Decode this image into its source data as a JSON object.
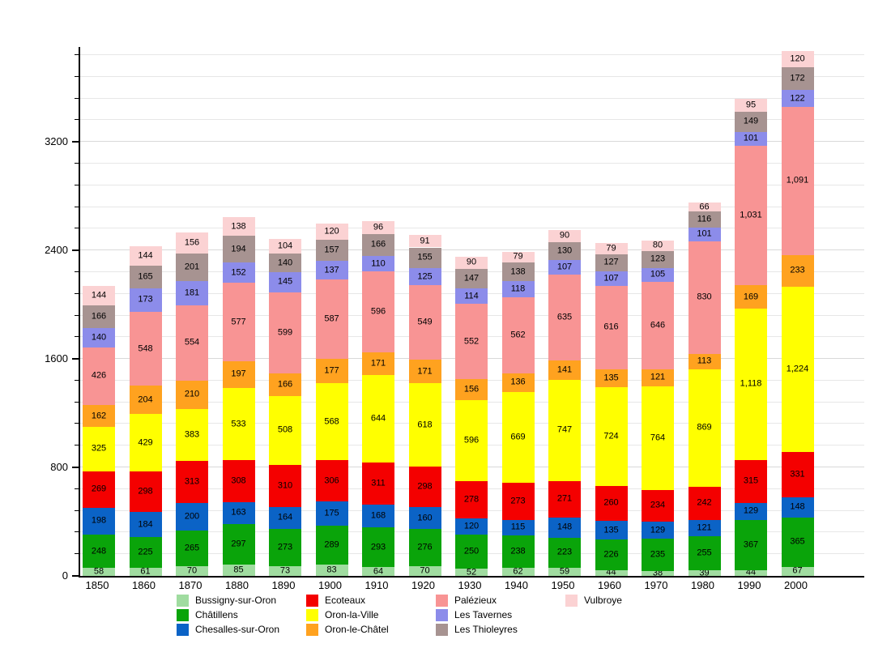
{
  "chart_data": {
    "type": "bar",
    "stacked": true,
    "title": "",
    "xlabel": "",
    "ylabel": "",
    "grid": true,
    "legend_position": "bottom",
    "value_labels": true,
    "ylim": [
      0,
      3900
    ],
    "yticks": [
      0,
      800,
      1600,
      2400,
      3200
    ],
    "minor_tick_step": 160,
    "categories": [
      "1850",
      "1860",
      "1870",
      "1880",
      "1890",
      "1900",
      "1910",
      "1920",
      "1930",
      "1940",
      "1950",
      "1960",
      "1970",
      "1980",
      "1990",
      "2000"
    ],
    "series": [
      {
        "name": "Bussigny-sur-Oron",
        "color": "#a0dca0",
        "values": [
          58,
          61,
          70,
          85,
          73,
          83,
          64,
          70,
          52,
          62,
          59,
          44,
          38,
          39,
          44,
          67
        ]
      },
      {
        "name": "Châtillens",
        "color": "#0aa40a",
        "values": [
          248,
          225,
          265,
          297,
          273,
          289,
          293,
          276,
          250,
          238,
          223,
          226,
          235,
          255,
          367,
          365
        ]
      },
      {
        "name": "Chesalles-sur-Oron",
        "color": "#0b63c6",
        "values": [
          198,
          184,
          200,
          163,
          164,
          175,
          168,
          160,
          120,
          115,
          148,
          135,
          129,
          121,
          129,
          148
        ]
      },
      {
        "name": "Ecoteaux",
        "color": "#f40000",
        "values": [
          269,
          298,
          313,
          308,
          310,
          306,
          311,
          298,
          278,
          273,
          271,
          260,
          234,
          242,
          315,
          331
        ]
      },
      {
        "name": "Oron-la-Ville",
        "color": "#ffff00",
        "values": [
          325,
          429,
          383,
          533,
          508,
          568,
          644,
          618,
          596,
          669,
          747,
          724,
          764,
          869,
          1118,
          1224
        ]
      },
      {
        "name": "Oron-le-Châtel",
        "color": "#ffa21f",
        "values": [
          162,
          204,
          210,
          197,
          166,
          177,
          171,
          171,
          156,
          136,
          141,
          135,
          121,
          113,
          169,
          233
        ]
      },
      {
        "name": "Palézieux",
        "color": "#f89494",
        "values": [
          426,
          548,
          554,
          577,
          599,
          587,
          596,
          549,
          552,
          562,
          635,
          616,
          646,
          830,
          1031,
          1091
        ]
      },
      {
        "name": "Les Tavernes",
        "color": "#8c8cea",
        "values": [
          140,
          173,
          181,
          152,
          145,
          137,
          110,
          125,
          114,
          118,
          107,
          107,
          105,
          101,
          101,
          122
        ]
      },
      {
        "name": "Les Thioleyres",
        "color": "#a79391",
        "values": [
          166,
          165,
          201,
          194,
          140,
          157,
          166,
          155,
          147,
          138,
          130,
          127,
          123,
          116,
          149,
          172
        ]
      },
      {
        "name": "Vulbroye",
        "color": "#fbd2d3",
        "values": [
          144,
          144,
          156,
          138,
          104,
          120,
          96,
          91,
          90,
          79,
          90,
          79,
          80,
          66,
          95,
          120
        ]
      }
    ]
  },
  "legend": {
    "rows_per_column": 3,
    "items": [
      "Bussigny-sur-Oron",
      "Châtillens",
      "Chesalles-sur-Oron",
      "Ecoteaux",
      "Oron-la-Ville",
      "Oron-le-Châtel",
      "Palézieux",
      "Les Tavernes",
      "Les Thioleyres",
      "Vulbroye"
    ]
  }
}
